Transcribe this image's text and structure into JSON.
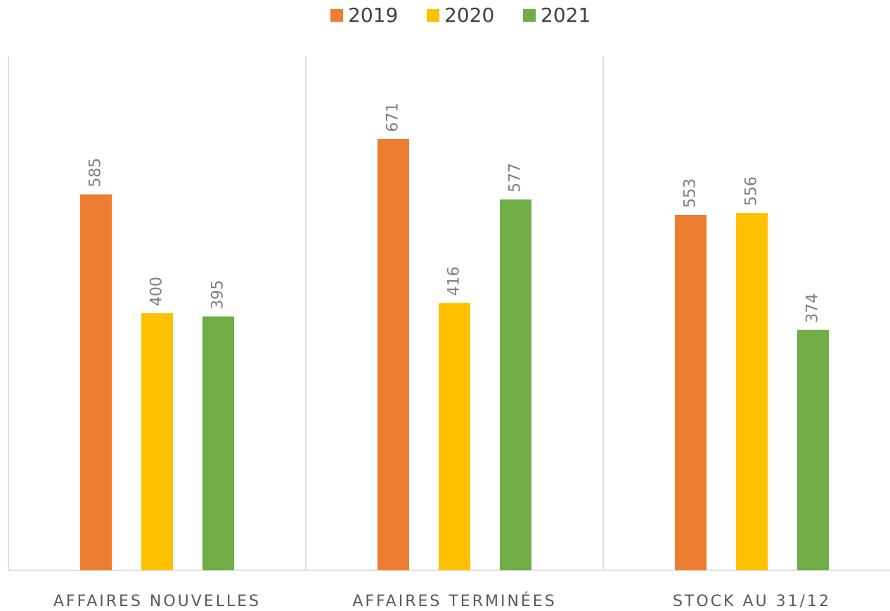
{
  "chart_data": {
    "type": "bar",
    "categories": [
      "AFFAIRES NOUVELLES",
      "AFFAIRES TERMINÉES",
      "STOCK AU 31/12"
    ],
    "series": [
      {
        "name": "2019",
        "color": "#ed7d31",
        "values": [
          585,
          671,
          553
        ]
      },
      {
        "name": "2020",
        "color": "#ffc000",
        "values": [
          400,
          416,
          556
        ]
      },
      {
        "name": "2021",
        "color": "#70ad47",
        "values": [
          395,
          577,
          374
        ]
      }
    ],
    "ylim": [
      0,
      800
    ],
    "legend": "top"
  }
}
